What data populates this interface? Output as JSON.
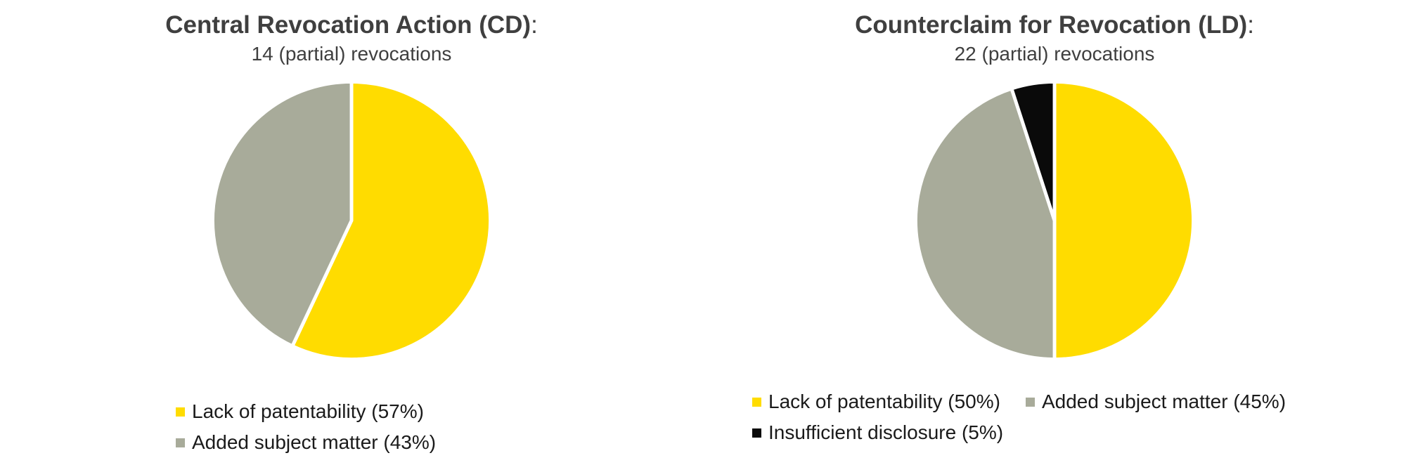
{
  "page": {
    "background_color": "#ffffff",
    "title_color": "#3f3f3f",
    "legend_text_color": "#1a1a1a"
  },
  "chart_data": [
    {
      "type": "pie",
      "title": "Central Revocation Action (CD)",
      "title_colon": ":",
      "subtitle": "14 (partial) revocations",
      "total_revocations": 14,
      "start_angle_deg": 0,
      "direction": "clockwise",
      "legend_position": "bottom",
      "slices": [
        {
          "label": "Lack of patentability",
          "pct": 57,
          "color": "#FFDC00",
          "legend": "Lack of patentability (57%)"
        },
        {
          "label": "Added subject matter",
          "pct": 43,
          "color": "#A8AB9A",
          "legend": "Added subject matter (43%)"
        }
      ]
    },
    {
      "type": "pie",
      "title": "Counterclaim for Revocation (LD)",
      "title_colon": ":",
      "subtitle": "22 (partial) revocations",
      "total_revocations": 22,
      "start_angle_deg": 0,
      "direction": "clockwise",
      "legend_position": "bottom",
      "slices": [
        {
          "label": "Lack of patentability",
          "pct": 50,
          "color": "#FFDC00",
          "legend": "Lack of patentability (50%)"
        },
        {
          "label": "Added subject matter",
          "pct": 45,
          "color": "#A8AB9A",
          "legend": "Added subject matter (45%)"
        },
        {
          "label": "Insufficient disclosure",
          "pct": 5,
          "color": "#0a0a0a",
          "legend": "Insufficient disclosure (5%)"
        }
      ]
    }
  ]
}
